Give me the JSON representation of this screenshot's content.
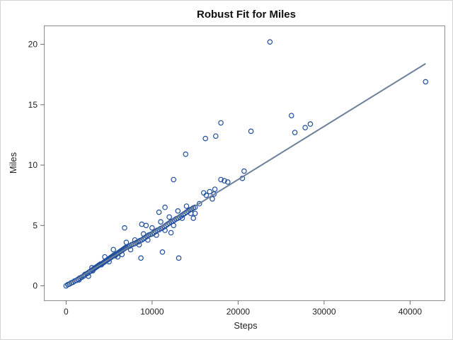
{
  "chart_data": {
    "type": "scatter",
    "title": "Robust Fit for Miles",
    "xlabel": "Steps",
    "ylabel": "Miles",
    "xlim": [
      -2500,
      44000
    ],
    "ylim": [
      -1.2,
      21.5
    ],
    "xticks": [
      0,
      10000,
      20000,
      30000,
      40000
    ],
    "xtick_labels": [
      "0",
      "10000",
      "20000",
      "30000",
      "40000"
    ],
    "yticks": [
      0,
      5,
      10,
      15,
      20
    ],
    "ytick_labels": [
      "0",
      "5",
      "10",
      "15",
      "20"
    ],
    "grid": false,
    "colors": {
      "points": "#1f4e9c",
      "fit_line": "#6e819b"
    },
    "fit_line": {
      "x": [
        0,
        41800
      ],
      "y": [
        0,
        18.4
      ]
    },
    "points": [
      [
        0,
        0
      ],
      [
        200,
        0.1
      ],
      [
        400,
        0.15
      ],
      [
        600,
        0.25
      ],
      [
        800,
        0.3
      ],
      [
        1000,
        0.4
      ],
      [
        1200,
        0.45
      ],
      [
        1400,
        0.55
      ],
      [
        1500,
        0.5
      ],
      [
        1600,
        0.65
      ],
      [
        1800,
        0.7
      ],
      [
        2000,
        0.8
      ],
      [
        2100,
        0.85
      ],
      [
        2200,
        0.95
      ],
      [
        2400,
        1.0
      ],
      [
        2500,
        1.05
      ],
      [
        2600,
        0.8
      ],
      [
        2700,
        1.15
      ],
      [
        2800,
        1.2
      ],
      [
        3000,
        1.3
      ],
      [
        3100,
        1.25
      ],
      [
        3200,
        1.4
      ],
      [
        3300,
        1.45
      ],
      [
        3400,
        1.5
      ],
      [
        3500,
        1.55
      ],
      [
        3600,
        1.6
      ],
      [
        3700,
        1.65
      ],
      [
        3800,
        1.7
      ],
      [
        3900,
        1.75
      ],
      [
        4000,
        1.8
      ],
      [
        4100,
        1.75
      ],
      [
        4200,
        1.85
      ],
      [
        4300,
        1.9
      ],
      [
        4400,
        1.95
      ],
      [
        4500,
        2.0
      ],
      [
        4600,
        2.05
      ],
      [
        4700,
        2.1
      ],
      [
        4800,
        2.15
      ],
      [
        4900,
        2.2
      ],
      [
        5000,
        2.25
      ],
      [
        5100,
        2.3
      ],
      [
        5200,
        2.35
      ],
      [
        5300,
        2.4
      ],
      [
        5400,
        2.45
      ],
      [
        5500,
        2.5
      ],
      [
        5600,
        2.55
      ],
      [
        5700,
        2.5
      ],
      [
        5800,
        2.6
      ],
      [
        5900,
        2.65
      ],
      [
        6000,
        2.7
      ],
      [
        6100,
        2.75
      ],
      [
        6200,
        2.8
      ],
      [
        6300,
        2.85
      ],
      [
        6400,
        2.9
      ],
      [
        6500,
        2.95
      ],
      [
        6600,
        3.0
      ],
      [
        6700,
        3.05
      ],
      [
        6800,
        3.1
      ],
      [
        6900,
        3.15
      ],
      [
        7000,
        3.2
      ],
      [
        7200,
        3.25
      ],
      [
        7400,
        3.3
      ],
      [
        7600,
        3.4
      ],
      [
        7800,
        3.45
      ],
      [
        8000,
        3.5
      ],
      [
        8200,
        3.6
      ],
      [
        8400,
        3.65
      ],
      [
        8600,
        3.75
      ],
      [
        8800,
        3.8
      ],
      [
        9000,
        3.9
      ],
      [
        9200,
        4.0
      ],
      [
        9400,
        4.1
      ],
      [
        9600,
        4.2
      ],
      [
        9800,
        4.25
      ],
      [
        10000,
        4.3
      ],
      [
        10200,
        4.4
      ],
      [
        10400,
        4.5
      ],
      [
        10600,
        4.6
      ],
      [
        10800,
        4.65
      ],
      [
        11000,
        4.75
      ],
      [
        11200,
        4.8
      ],
      [
        11400,
        4.9
      ],
      [
        11600,
        5.0
      ],
      [
        11800,
        5.1
      ],
      [
        12000,
        5.2
      ],
      [
        12200,
        5.3
      ],
      [
        12400,
        5.35
      ],
      [
        12600,
        5.45
      ],
      [
        12800,
        5.55
      ],
      [
        13000,
        5.6
      ],
      [
        13200,
        5.7
      ],
      [
        13400,
        5.8
      ],
      [
        13600,
        5.9
      ],
      [
        13800,
        6.0
      ],
      [
        14000,
        6.1
      ],
      [
        14200,
        6.2
      ],
      [
        14400,
        6.3
      ],
      [
        14600,
        6.35
      ],
      [
        14800,
        6.45
      ],
      [
        15000,
        6.5
      ],
      [
        3000,
        1.5
      ],
      [
        4500,
        2.4
      ],
      [
        5000,
        2.0
      ],
      [
        5500,
        3.0
      ],
      [
        6000,
        2.4
      ],
      [
        6500,
        2.6
      ],
      [
        7000,
        3.6
      ],
      [
        7500,
        3.0
      ],
      [
        8000,
        3.8
      ],
      [
        8500,
        3.4
      ],
      [
        9000,
        4.3
      ],
      [
        9500,
        3.8
      ],
      [
        10000,
        4.8
      ],
      [
        10500,
        4.2
      ],
      [
        11000,
        5.3
      ],
      [
        11500,
        4.6
      ],
      [
        12000,
        5.7
      ],
      [
        12500,
        5.0
      ],
      [
        13000,
        6.2
      ],
      [
        13500,
        5.6
      ],
      [
        14000,
        6.6
      ],
      [
        14500,
        6.0
      ],
      [
        6800,
        4.8
      ],
      [
        8800,
        5.1
      ],
      [
        9300,
        5.0
      ],
      [
        10800,
        6.1
      ],
      [
        11500,
        6.5
      ],
      [
        12200,
        4.4
      ],
      [
        8700,
        2.3
      ],
      [
        11200,
        2.8
      ],
      [
        13100,
        2.3
      ],
      [
        12500,
        8.8
      ],
      [
        15000,
        6.0
      ],
      [
        14800,
        5.6
      ],
      [
        15500,
        6.8
      ],
      [
        16000,
        7.7
      ],
      [
        16300,
        7.5
      ],
      [
        16700,
        7.8
      ],
      [
        17000,
        7.2
      ],
      [
        17200,
        7.6
      ],
      [
        17300,
        8.0
      ],
      [
        18000,
        8.8
      ],
      [
        18400,
        8.7
      ],
      [
        18800,
        8.6
      ],
      [
        20500,
        8.9
      ],
      [
        20700,
        9.5
      ],
      [
        13900,
        10.9
      ],
      [
        16200,
        12.2
      ],
      [
        17400,
        12.4
      ],
      [
        18000,
        13.5
      ],
      [
        21500,
        12.8
      ],
      [
        23700,
        20.2
      ],
      [
        26200,
        14.1
      ],
      [
        26600,
        12.7
      ],
      [
        27800,
        13.1
      ],
      [
        28400,
        13.4
      ],
      [
        41800,
        16.9
      ]
    ]
  }
}
